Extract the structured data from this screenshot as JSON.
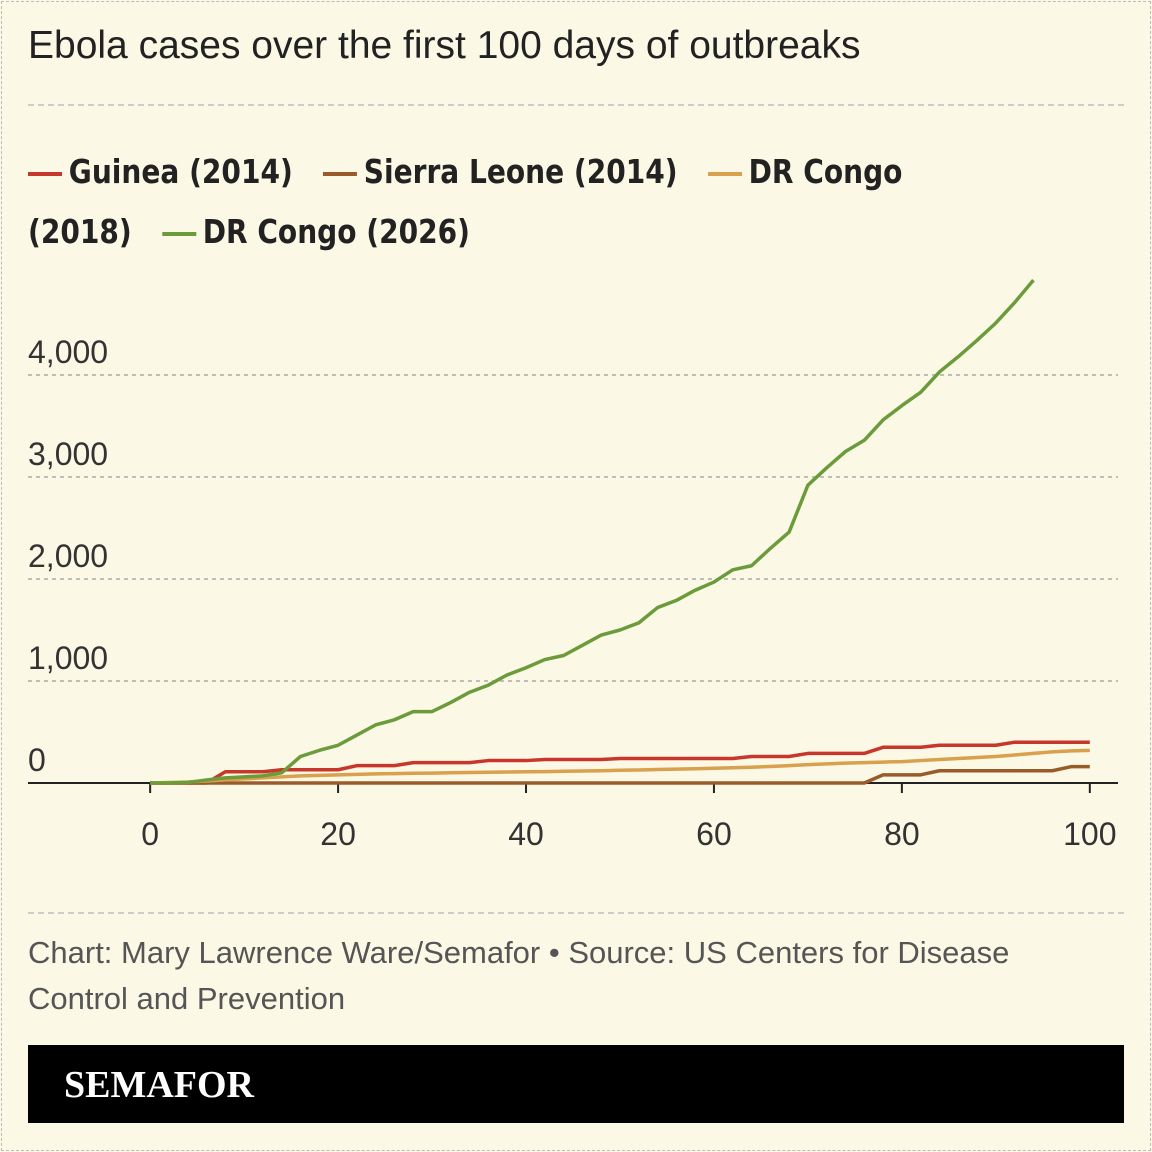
{
  "chart_data": {
    "type": "line",
    "title": "Ebola cases over the first 100 days of outbreaks",
    "x": [
      0,
      2,
      4,
      6,
      8,
      10,
      12,
      14,
      16,
      18,
      20,
      22,
      24,
      26,
      28,
      30,
      32,
      34,
      36,
      38,
      40,
      42,
      44,
      46,
      48,
      50,
      52,
      54,
      56,
      58,
      60,
      62,
      64,
      66,
      68,
      70,
      72,
      74,
      76,
      78,
      80,
      82,
      84,
      86,
      88,
      90,
      92,
      94,
      96,
      98,
      100
    ],
    "series": [
      {
        "name": "Guinea (2014)",
        "color": "#c8372b",
        "values": [
          0,
          0,
          0,
          0,
          110,
          110,
          110,
          130,
          130,
          130,
          130,
          170,
          170,
          170,
          200,
          200,
          200,
          200,
          220,
          220,
          220,
          230,
          230,
          230,
          230,
          240,
          240,
          240,
          240,
          240,
          240,
          240,
          260,
          260,
          260,
          290,
          290,
          290,
          290,
          350,
          350,
          350,
          370,
          370,
          370,
          370,
          400,
          400,
          400,
          400,
          400
        ]
      },
      {
        "name": "Sierra Leone (2014)",
        "color": "#9a5b2a",
        "values": [
          0,
          0,
          0,
          0,
          0,
          0,
          0,
          0,
          0,
          0,
          0,
          0,
          0,
          0,
          0,
          0,
          0,
          0,
          0,
          0,
          0,
          0,
          0,
          0,
          0,
          0,
          0,
          0,
          0,
          0,
          0,
          0,
          0,
          0,
          0,
          0,
          0,
          0,
          0,
          80,
          80,
          80,
          120,
          120,
          120,
          120,
          120,
          120,
          120,
          160,
          160
        ]
      },
      {
        "name": "DR Congo (2018)",
        "color": "#d9a04e",
        "values": [
          0,
          5,
          10,
          20,
          30,
          40,
          50,
          60,
          70,
          75,
          80,
          85,
          90,
          92,
          95,
          97,
          100,
          103,
          106,
          108,
          110,
          112,
          115,
          118,
          120,
          125,
          128,
          132,
          136,
          140,
          145,
          150,
          155,
          162,
          170,
          180,
          188,
          195,
          200,
          205,
          210,
          220,
          230,
          240,
          250,
          260,
          275,
          290,
          305,
          315,
          320
        ]
      },
      {
        "name": "DR Congo (2026)",
        "color": "#6b9b3a",
        "values": [
          0,
          0,
          5,
          30,
          50,
          60,
          70,
          100,
          260,
          320,
          370,
          470,
          570,
          620,
          700,
          700,
          790,
          890,
          960,
          1060,
          1130,
          1210,
          1250,
          1350,
          1450,
          1500,
          1570,
          1720,
          1790,
          1890,
          1970,
          2090,
          2130,
          2300,
          2460,
          2920,
          3090,
          3250,
          3360,
          3560,
          3700,
          3830,
          4030,
          4180,
          4340,
          4510,
          4710,
          4930,
          null,
          null,
          null
        ]
      }
    ],
    "xlim": [
      -13,
      103
    ],
    "ylim": [
      0,
      5000
    ],
    "xticks": [
      0,
      20,
      40,
      60,
      80,
      100
    ],
    "yticks": [
      0,
      {
        "value": 1000,
        "label": "1,000"
      },
      {
        "value": 2000,
        "label": "2,000"
      },
      {
        "value": 3000,
        "label": "3,000"
      },
      {
        "value": 4000,
        "label": "4,000"
      }
    ],
    "grid": true,
    "source": "Chart: Mary Lawrence Ware/Semafor • Source: US Centers for Disease Control and Prevention",
    "brand": "SEMAFOR"
  }
}
